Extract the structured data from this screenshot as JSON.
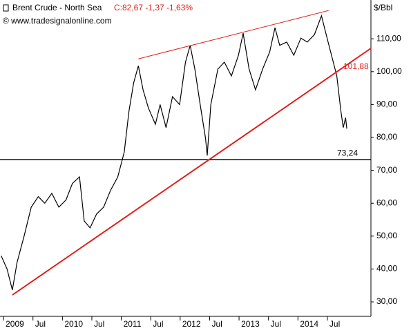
{
  "chart_data": {
    "type": "line",
    "title": "Brent Crude - North Sea",
    "quote": "C:82,67 -1,37 -1,63%",
    "source": "© www.tradesignalonline.com",
    "unit": "$/Bbl",
    "color": "#000000",
    "x": [
      2008.96,
      2009.06,
      2009.15,
      2009.23,
      2009.35,
      2009.47,
      2009.59,
      2009.7,
      2009.82,
      2009.94,
      2010.06,
      2010.17,
      2010.29,
      2010.37,
      2010.47,
      2010.58,
      2010.7,
      2010.82,
      2010.94,
      2011.05,
      2011.13,
      2011.21,
      2011.29,
      2011.37,
      2011.46,
      2011.58,
      2011.66,
      2011.76,
      2011.87,
      2011.99,
      2012.09,
      2012.17,
      2012.25,
      2012.34,
      2012.43,
      2012.46,
      2012.52,
      2012.64,
      2012.75,
      2012.87,
      2012.99,
      2013.07,
      2013.17,
      2013.28,
      2013.4,
      2013.52,
      2013.61,
      2013.69,
      2013.81,
      2013.93,
      2014.05,
      2014.16,
      2014.28,
      2014.4,
      2014.48,
      2014.57,
      2014.66,
      2014.73,
      2014.77,
      2014.81,
      2014.83
    ],
    "values": [
      44,
      40,
      33.6,
      42,
      50,
      58.8,
      62,
      60,
      63,
      58.8,
      61,
      66,
      68,
      54.6,
      52.5,
      56.7,
      58.8,
      64,
      68,
      75.6,
      88,
      96.6,
      101.8,
      94.5,
      89,
      84,
      90,
      83,
      92.4,
      90,
      102.9,
      108,
      100.8,
      90,
      79.8,
      74.5,
      90,
      100.8,
      102.9,
      98.7,
      105,
      111.7,
      100.8,
      94.5,
      100.8,
      106,
      113.4,
      108,
      109,
      105,
      110.2,
      109,
      111.3,
      117,
      111.3,
      105,
      98.7,
      88,
      83,
      86,
      82.67
    ],
    "xlim": [
      2008.94,
      2015.24
    ],
    "xticks": [
      2009,
      {
        "value": 2009.5,
        "label": "Jul"
      },
      2010,
      {
        "value": 2010.5,
        "label": "Jul"
      },
      2011,
      {
        "value": 2011.5,
        "label": "Jul"
      },
      2012,
      {
        "value": 2012.5,
        "label": "Jul"
      },
      2013,
      {
        "value": 2013.5,
        "label": "Jul"
      },
      2014,
      {
        "value": 2014.5,
        "label": "Jul"
      }
    ],
    "ylim": [
      25.6,
      121.8
    ],
    "yticks": [
      {
        "value": 30,
        "label": "30,00"
      },
      {
        "value": 40,
        "label": "40,00"
      },
      {
        "value": 50,
        "label": "50,00"
      },
      {
        "value": 60,
        "label": "60,00"
      },
      {
        "value": 70,
        "label": "70,00"
      },
      {
        "value": 80,
        "label": "80,00"
      },
      {
        "value": 90,
        "label": "90,00"
      },
      {
        "value": 100,
        "label": "100,00"
      },
      {
        "value": 110,
        "label": "110,00"
      }
    ],
    "trendlines": [
      {
        "x": [
          2009.15,
          2015.24
        ],
        "values": [
          32.1,
          107.1
        ],
        "color": "#e0201b",
        "width": 2
      },
      {
        "x": [
          2011.29,
          2014.52
        ],
        "values": [
          103.9,
          118.6
        ],
        "color": "#e0201b",
        "width": 1
      }
    ],
    "hline": {
      "value": 73.24,
      "label": "73,24",
      "color": "#000000"
    },
    "annotation": {
      "value": 101.88,
      "label": "101,88",
      "color": "#e0201b"
    }
  }
}
